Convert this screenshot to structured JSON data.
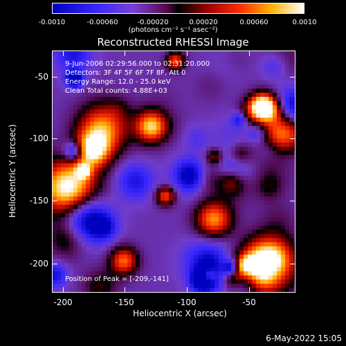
{
  "chart_data": {
    "type": "heatmap",
    "title": "Reconstructed RHESSI Image",
    "xlabel": "Heliocentric X (arcsec)",
    "ylabel": "Heliocentric Y (arcsec)",
    "xlim": [
      -213,
      -14
    ],
    "ylim": [
      -223,
      -30
    ],
    "x_ticks": [
      "-200",
      "-150",
      "-100",
      "-50"
    ],
    "y_ticks": [
      "-50",
      "-100",
      "-150",
      "-200"
    ],
    "colorbar": {
      "range": [
        -0.001,
        0.001
      ],
      "ticks": [
        "-0.0010",
        "-0.00060",
        "-0.00020",
        "0.00020",
        "0.00060",
        "0.0010"
      ],
      "unit": "(photons cm⁻² s⁻¹ asec⁻²)"
    },
    "annotations": {
      "time_range": "9-Jun-2006 02:29:56.000 to 02:31:20.000",
      "detectors": "Detectors: 3F 4F 5F 6F 7F 8F, Att 0",
      "energy": "Energy Range: 12.0 - 25.0 keV",
      "clean": "Clean    Total counts: 4.88E+03",
      "peak": "Position of Peak = [-209,-141]"
    }
  },
  "footer": {
    "timestamp": "6-May-2022 15:05"
  }
}
